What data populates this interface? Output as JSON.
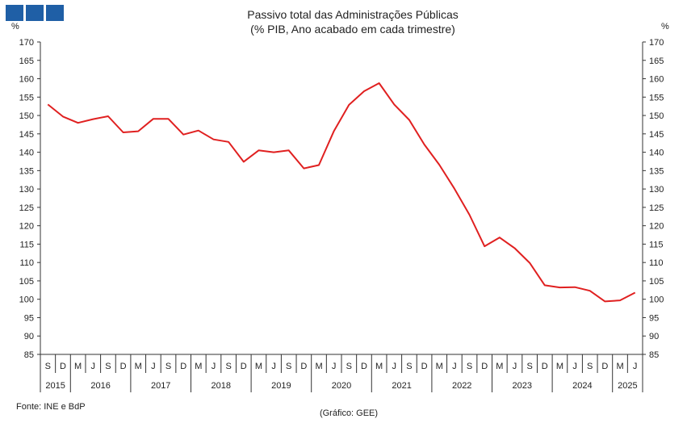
{
  "logo": {
    "color": "#1f5fa6"
  },
  "source": "Fonte: INE e BdP",
  "credit": "(Gráfico: GEE)",
  "chart_data": {
    "type": "line",
    "title": "Passivo total das Administrações Públicas",
    "subtitle": "(% PIB, Ano acabado em cada trimestre)",
    "ylabel_left": "%",
    "ylabel_right": "%",
    "ylim": [
      85,
      170
    ],
    "yticks": [
      85,
      90,
      95,
      100,
      105,
      110,
      115,
      120,
      125,
      130,
      135,
      140,
      145,
      150,
      155,
      160,
      165,
      170
    ],
    "grid": false,
    "x_quarter_labels": [
      "S",
      "D",
      "M",
      "J",
      "S",
      "D",
      "M",
      "J",
      "S",
      "D",
      "M",
      "J",
      "S",
      "D",
      "M",
      "J",
      "S",
      "D",
      "M",
      "J",
      "S",
      "D",
      "M",
      "J",
      "S",
      "D",
      "M",
      "J",
      "S",
      "D",
      "M",
      "J",
      "S",
      "D",
      "M",
      "J",
      "S",
      "D",
      "M",
      "J"
    ],
    "years": [
      {
        "label": "2015",
        "count": 2
      },
      {
        "label": "2016",
        "count": 4
      },
      {
        "label": "2017",
        "count": 4
      },
      {
        "label": "2018",
        "count": 4
      },
      {
        "label": "2019",
        "count": 4
      },
      {
        "label": "2020",
        "count": 4
      },
      {
        "label": "2021",
        "count": 4
      },
      {
        "label": "2022",
        "count": 4
      },
      {
        "label": "2023",
        "count": 4
      },
      {
        "label": "2024",
        "count": 4
      },
      {
        "label": "2025",
        "count": 2
      }
    ],
    "series": [
      {
        "color": "#e02020",
        "values": [
          153.0,
          149.7,
          148.0,
          149.0,
          149.8,
          145.4,
          145.7,
          149.1,
          149.1,
          144.8,
          145.9,
          143.5,
          142.8,
          137.4,
          140.5,
          140.0,
          140.5,
          135.6,
          136.5,
          145.8,
          152.9,
          156.6,
          158.8,
          153.0,
          148.8,
          142.1,
          136.6,
          130.1,
          123.0,
          114.4,
          116.8,
          113.9,
          109.9,
          103.8,
          103.2,
          103.3,
          102.3,
          99.4,
          99.7,
          101.8
        ]
      }
    ]
  }
}
